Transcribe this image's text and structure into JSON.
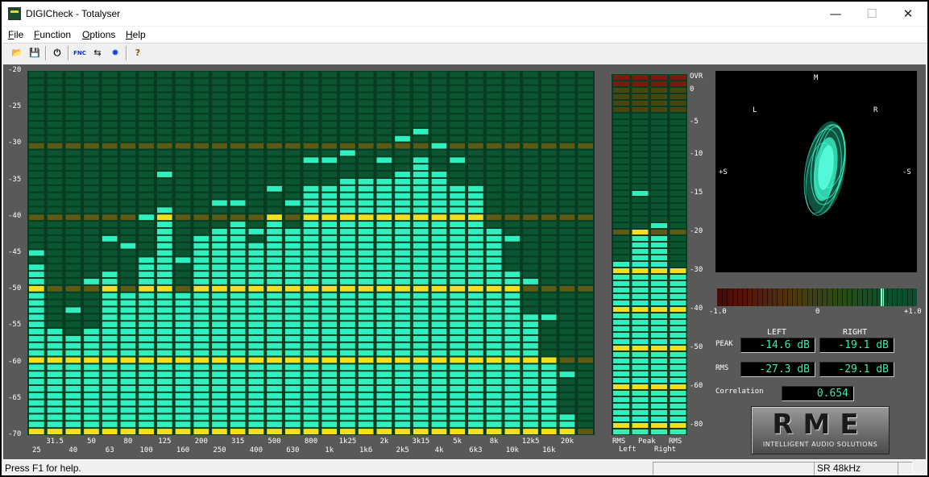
{
  "window": {
    "title": "DIGICheck - Totalyser",
    "minimize": "—",
    "maximize": "☐",
    "close": "✕"
  },
  "menu": [
    "File",
    "Function",
    "Options",
    "Help"
  ],
  "toolbar": [
    {
      "name": "open-icon",
      "glyph": "📂"
    },
    {
      "name": "save-icon",
      "glyph": "💾"
    },
    {
      "name": "power-icon",
      "glyph": "⏻"
    },
    {
      "name": "function-icon",
      "glyph": "FNC"
    },
    {
      "name": "settings-icon",
      "glyph": "⇆"
    },
    {
      "name": "sun-icon",
      "glyph": "✹"
    },
    {
      "name": "help-icon",
      "glyph": "?"
    }
  ],
  "spectrum": {
    "y_labels": [
      "-20",
      "-25",
      "-30",
      "-35",
      "-40",
      "-45",
      "-50",
      "-55",
      "-60",
      "-65",
      "-70"
    ],
    "x_top": [
      "31.5",
      "50",
      "80",
      "125",
      "200",
      "315",
      "500",
      "800",
      "1k25",
      "2k",
      "3k15",
      "5k",
      "8k",
      "12k5",
      "20k"
    ],
    "x_bottom": [
      "25",
      "40",
      "63",
      "100",
      "160",
      "250",
      "400",
      "630",
      "1k",
      "1k6",
      "2k5",
      "4k",
      "6k3",
      "10k",
      "16k"
    ],
    "bands": [
      {
        "freq": "25",
        "level": -46.5,
        "peak": -45
      },
      {
        "freq": "31.5",
        "level": -55.5,
        "peak": -55.5
      },
      {
        "freq": "40",
        "level": -56.5,
        "peak": -53
      },
      {
        "freq": "50",
        "level": -55.5,
        "peak": -49
      },
      {
        "freq": "63",
        "level": -47.5,
        "peak": -43
      },
      {
        "freq": "80",
        "level": -50.5,
        "peak": -44
      },
      {
        "freq": "100",
        "level": -45.5,
        "peak": -40
      },
      {
        "freq": "125",
        "level": -38.5,
        "peak": -34
      },
      {
        "freq": "160",
        "level": -50.5,
        "peak": -46
      },
      {
        "freq": "200",
        "level": -43,
        "peak": -43
      },
      {
        "freq": "250",
        "level": -41.5,
        "peak": -38
      },
      {
        "freq": "315",
        "level": -40.5,
        "peak": -38
      },
      {
        "freq": "400",
        "level": -43.5,
        "peak": -42
      },
      {
        "freq": "500",
        "level": -40,
        "peak": -36
      },
      {
        "freq": "630",
        "level": -41.5,
        "peak": -38
      },
      {
        "freq": "800",
        "level": -35.5,
        "peak": -32
      },
      {
        "freq": "1k",
        "level": -35.5,
        "peak": -32
      },
      {
        "freq": "1k25",
        "level": -34.5,
        "peak": -31
      },
      {
        "freq": "1k6",
        "level": -34.5,
        "peak": -34.5
      },
      {
        "freq": "2k",
        "level": -34.5,
        "peak": -32
      },
      {
        "freq": "2k5",
        "level": -33.5,
        "peak": -29
      },
      {
        "freq": "3k15",
        "level": -31.5,
        "peak": -28
      },
      {
        "freq": "4k",
        "level": -33.5,
        "peak": -30
      },
      {
        "freq": "5k",
        "level": -35.5,
        "peak": -32
      },
      {
        "freq": "6k3",
        "level": -36.5,
        "peak": -36
      },
      {
        "freq": "8k",
        "level": -41.5,
        "peak": -41.5
      },
      {
        "freq": "10k",
        "level": -47.5,
        "peak": -43
      },
      {
        "freq": "12k5",
        "level": -53.5,
        "peak": -49
      },
      {
        "freq": "16k",
        "level": -59.5,
        "peak": -54
      },
      {
        "freq": "20k",
        "level": -67.5,
        "peak": -62
      },
      {
        "freq": "",
        "level": -71,
        "peak": -71
      }
    ]
  },
  "level_meter": {
    "scale": [
      "OVR",
      "0",
      "-5",
      "-10",
      "-15",
      "-20",
      "-30",
      "-40",
      "-50",
      "-60",
      "-80"
    ],
    "bar_labels": [
      "RMS",
      "Peak",
      "Peak",
      "RMS"
    ],
    "bar_sublabels": [
      "Left",
      "Right"
    ],
    "levels": [
      {
        "name": "rms-left",
        "level": -27.3
      },
      {
        "name": "peak-left",
        "level": -19.5,
        "hold": -14.6
      },
      {
        "name": "peak-right",
        "level": -21.5,
        "hold": -19.1
      },
      {
        "name": "rms-right",
        "level": -29.1
      }
    ]
  },
  "vectorscope": {
    "labels": {
      "m": "M",
      "l": "L",
      "r": "R",
      "plus_s": "+S",
      "minus_s": "-S"
    }
  },
  "correlation_meter": {
    "min": "-1.0",
    "mid": "0",
    "max": "+1.0",
    "value": 0.654
  },
  "readouts": {
    "left_header": "LEFT",
    "right_header": "RIGHT",
    "peak_label": "PEAK",
    "rms_label": "RMS",
    "peak_left": "-14.6 dB",
    "peak_right": "-19.1 dB",
    "rms_left": "-27.3 dB",
    "rms_right": "-29.1 dB",
    "correlation_label": "Correlation",
    "correlation": "0.654"
  },
  "logo": {
    "main": "RME",
    "sub": "INTELLIGENT AUDIO SOLUTIONS"
  },
  "colors": {
    "on": "#30f0c0",
    "off": "#0b5530",
    "yellow": "#f0e020",
    "olive": "#5c5a14",
    "bg": "#063c22"
  },
  "status": {
    "help": "Press F1 for help.",
    "sample_rate": "SR 48kHz"
  }
}
